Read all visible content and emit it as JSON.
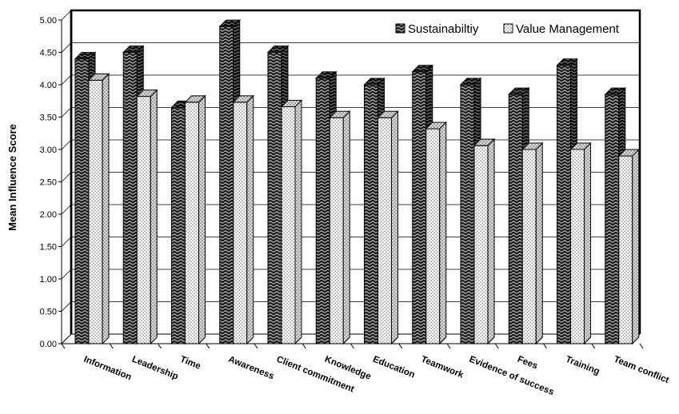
{
  "chart_data": {
    "type": "bar",
    "title": "",
    "xlabel": "",
    "ylabel": "Mean Influence Score",
    "ylim": [
      0,
      5
    ],
    "yticks": [
      "0.00",
      "0.50",
      "1.00",
      "1.50",
      "2.00",
      "2.50",
      "3.00",
      "3.50",
      "4.00",
      "4.50",
      "5.00"
    ],
    "categories": [
      "Information",
      "Leadership",
      "Time",
      "Awareness",
      "Client commitment",
      "Knowledge",
      "Education",
      "Teamwork",
      "Evidence of success",
      "Fees",
      "Training",
      "Team conflict"
    ],
    "series": [
      {
        "name": "Sustainabiltiy",
        "values": [
          4.4,
          4.5,
          3.65,
          4.9,
          4.5,
          4.1,
          4.0,
          4.2,
          4.0,
          3.85,
          4.3,
          3.85
        ]
      },
      {
        "name": "Value Management",
        "values": [
          4.07,
          3.82,
          3.73,
          3.73,
          3.66,
          3.49,
          3.49,
          3.32,
          3.06,
          3.0,
          3.0,
          2.9
        ]
      }
    ],
    "grid": true,
    "legend": "top-right"
  }
}
